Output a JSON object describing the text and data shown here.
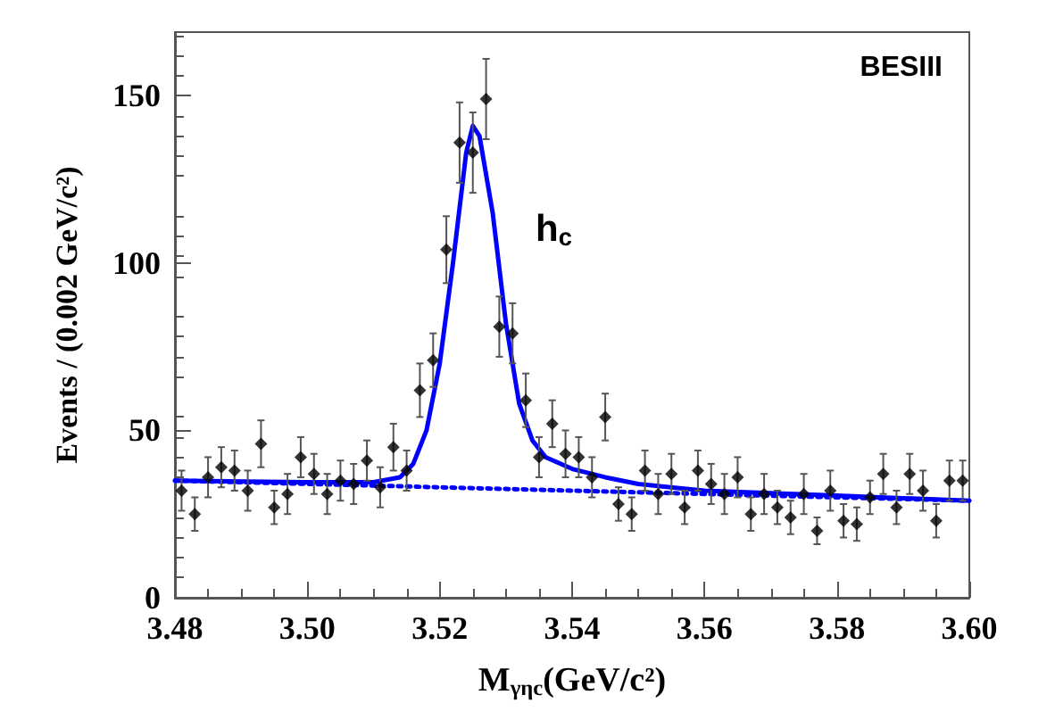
{
  "chart_data": {
    "type": "scatter",
    "xlabel": "M$_{γη}$$_{c}$(GeV/c²)",
    "ylabel": "Events / (0.002 GeV/c²)",
    "xlim": [
      3.48,
      3.6
    ],
    "xticks": [
      3.48,
      {
        "value": 3.5,
        "label": "3.50"
      },
      3.52,
      3.54,
      3.56,
      3.58,
      {
        "value": 3.6,
        "label": "3.60"
      }
    ],
    "ylim": [
      0,
      169
    ],
    "yticks": [
      0,
      50,
      100,
      150
    ],
    "grid": false,
    "annotations": [
      "BESIII",
      "h$_{c}$"
    ],
    "series": [
      {
        "marker": "diamond",
        "color": "#000000",
        "x": [
          3.481,
          3.483,
          3.485,
          3.487,
          3.489,
          3.491,
          3.493,
          3.495,
          3.497,
          3.499,
          3.501,
          3.503,
          3.505,
          3.507,
          3.509,
          3.511,
          3.513,
          3.515,
          3.517,
          3.519,
          3.521,
          3.523,
          3.525,
          3.527,
          3.529,
          3.531,
          3.533,
          3.535,
          3.537,
          3.539,
          3.541,
          3.543,
          3.545,
          3.547,
          3.549,
          3.551,
          3.553,
          3.555,
          3.557,
          3.559,
          3.561,
          3.563,
          3.565,
          3.567,
          3.569,
          3.571,
          3.573,
          3.575,
          3.577,
          3.579,
          3.581,
          3.583,
          3.585,
          3.587,
          3.589,
          3.591,
          3.593,
          3.595,
          3.597,
          3.599
        ],
        "values": [
          32,
          25,
          36,
          39,
          38,
          32,
          46,
          27,
          31,
          42,
          37,
          31,
          35,
          34,
          41,
          33,
          45,
          38,
          62,
          71,
          104,
          136,
          133,
          149,
          81,
          79,
          59,
          42,
          52,
          43,
          42,
          36,
          54,
          28,
          25,
          38,
          31,
          37,
          27,
          38,
          34,
          31,
          36,
          25,
          31,
          27,
          24,
          31,
          20,
          32,
          23,
          22,
          30,
          37,
          27,
          37,
          32,
          23,
          35,
          35
        ],
        "errors": [
          6,
          5,
          6,
          6,
          6,
          6,
          7,
          5,
          6,
          6,
          6,
          6,
          6,
          6,
          6,
          6,
          7,
          6,
          8,
          8,
          10,
          12,
          12,
          12,
          9,
          9,
          8,
          6,
          7,
          7,
          6,
          6,
          7,
          5,
          5,
          6,
          6,
          6,
          5,
          6,
          6,
          6,
          6,
          5,
          6,
          5,
          5,
          6,
          4,
          6,
          5,
          5,
          5,
          6,
          5,
          6,
          6,
          5,
          6,
          6
        ]
      },
      {
        "type": "line",
        "marker": "none",
        "color": "#0000ff",
        "line_style": "solid",
        "x": [
          3.48,
          3.5,
          3.51,
          3.514,
          3.516,
          3.518,
          3.52,
          3.522,
          3.524,
          3.525,
          3.526,
          3.528,
          3.53,
          3.532,
          3.534,
          3.536,
          3.54,
          3.545,
          3.55,
          3.56,
          3.58,
          3.6
        ],
        "values": [
          35,
          34.5,
          34.5,
          36,
          40,
          50,
          70,
          100,
          133,
          141,
          138,
          115,
          82,
          58,
          47,
          42,
          38.5,
          36,
          34,
          32,
          30.5,
          29
        ]
      },
      {
        "type": "line",
        "marker": "none",
        "color": "#0000ff",
        "line_style": "dotted",
        "x": [
          3.48,
          3.6
        ],
        "values": [
          35,
          29
        ]
      }
    ]
  }
}
